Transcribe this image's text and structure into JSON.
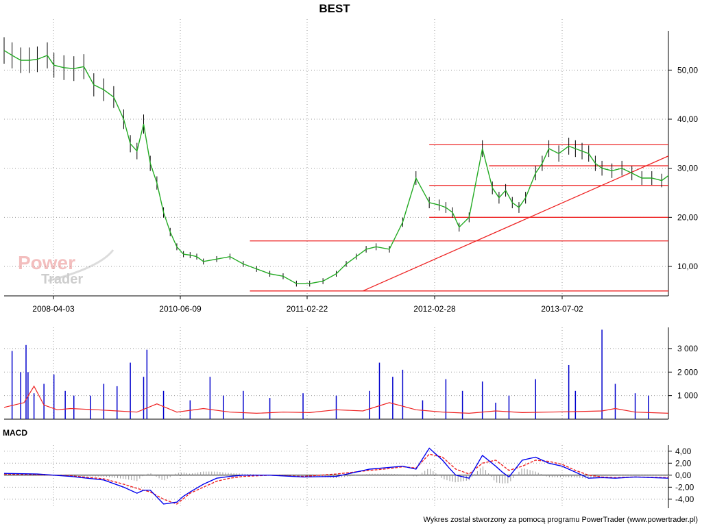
{
  "title": "BEST",
  "footer": "Wykres został stworzony za pomocą programu PowerTrader (www.powertrader.pl)",
  "watermark": {
    "line1": "Power",
    "line2": "Trader"
  },
  "macd_label": "MACD",
  "colors": {
    "price_line": "#22aa22",
    "candle": "#000000",
    "trend_line": "#ee2222",
    "volume_bar": "#0000cc",
    "volume_avg": "#ee2222",
    "macd": "#0000ee",
    "signal": "#ee2222",
    "histogram": "#999999",
    "grid": "#999999"
  },
  "chart_data": [
    {
      "type": "line",
      "title": "BEST",
      "x_tick_labels": [
        "2008-04-03",
        "2010-06-09",
        "2011-02-22",
        "2012-02-28",
        "2013-07-02"
      ],
      "y_tick_labels": [
        "10,00",
        "20,00",
        "30,00",
        "40,00",
        "50,00"
      ],
      "ylim": [
        4,
        58
      ],
      "grid": true,
      "series": [
        {
          "t": [
            0,
            0.012,
            0.025,
            0.038,
            0.05,
            0.065,
            0.075,
            0.09,
            0.105,
            0.12,
            0.135,
            0.15,
            0.165,
            0.18,
            0.19,
            0.2,
            0.21,
            0.22,
            0.23,
            0.24,
            0.25,
            0.26,
            0.27,
            0.28,
            0.29,
            0.3,
            0.32,
            0.34,
            0.36,
            0.38,
            0.4,
            0.42,
            0.44,
            0.46,
            0.48,
            0.5,
            0.515,
            0.53,
            0.545,
            0.56,
            0.58,
            0.6,
            0.62,
            0.64,
            0.655,
            0.665,
            0.675,
            0.685,
            0.7,
            0.72,
            0.735,
            0.745,
            0.755,
            0.765,
            0.775,
            0.785,
            0.8,
            0.81,
            0.82,
            0.835,
            0.85,
            0.86,
            0.87,
            0.88,
            0.89,
            0.9,
            0.915,
            0.93,
            0.945,
            0.96,
            0.975,
            0.99,
            1.0
          ],
          "values": [
            54.0,
            53.0,
            52.0,
            52.0,
            52.2,
            53.0,
            51.0,
            50.5,
            50.3,
            50.7,
            47.0,
            46.0,
            44.5,
            40.0,
            35.0,
            33.5,
            39.0,
            31.0,
            27.0,
            21.0,
            17.0,
            14.0,
            12.5,
            12.3,
            12.0,
            11.0,
            11.5,
            12.0,
            10.5,
            9.5,
            8.5,
            8.0,
            6.5,
            6.5,
            7.0,
            8.5,
            10.5,
            12.0,
            13.5,
            14.0,
            13.5,
            19.0,
            28.0,
            23.0,
            22.5,
            22.0,
            21.0,
            18.0,
            20.0,
            34.0,
            26.0,
            24.0,
            25.5,
            23.0,
            22.0,
            24.0,
            29.0,
            31.0,
            34.0,
            33.0,
            34.5,
            34.0,
            33.5,
            33.0,
            31.0,
            30.0,
            29.5,
            30.0,
            29.0,
            28.0,
            28.0,
            27.5,
            28.5
          ]
        }
      ],
      "trend_lines": [
        {
          "from": [
            0.37,
            15.2
          ],
          "to": [
            1.0,
            15.2
          ]
        },
        {
          "from": [
            0.37,
            5.0
          ],
          "to": [
            1.0,
            5.0
          ]
        },
        {
          "from": [
            0.54,
            5.0
          ],
          "to": [
            1.0,
            32.5
          ]
        },
        {
          "from": [
            0.64,
            34.8
          ],
          "to": [
            1.0,
            34.8
          ]
        },
        {
          "from": [
            0.73,
            30.5
          ],
          "to": [
            1.0,
            30.5
          ]
        },
        {
          "from": [
            0.64,
            26.5
          ],
          "to": [
            1.0,
            26.5
          ]
        },
        {
          "from": [
            0.64,
            20.0
          ],
          "to": [
            1.0,
            20.0
          ]
        }
      ]
    },
    {
      "type": "bar",
      "title": "",
      "y_tick_labels": [
        "1 000",
        "2 000",
        "3 000"
      ],
      "ylim": [
        0,
        3900
      ],
      "grid": true,
      "series": [
        {
          "t": [
            0.012,
            0.025,
            0.033,
            0.036,
            0.045,
            0.06,
            0.075,
            0.092,
            0.105,
            0.13,
            0.15,
            0.17,
            0.19,
            0.21,
            0.215,
            0.24,
            0.28,
            0.31,
            0.33,
            0.36,
            0.4,
            0.45,
            0.5,
            0.55,
            0.565,
            0.585,
            0.6,
            0.63,
            0.665,
            0.69,
            0.72,
            0.74,
            0.76,
            0.8,
            0.85,
            0.86,
            0.9,
            0.92,
            0.95,
            0.97
          ],
          "values": [
            2900,
            2000,
            3150,
            2000,
            1100,
            1500,
            1900,
            1200,
            1000,
            1000,
            1500,
            1400,
            2400,
            1800,
            2950,
            1200,
            800,
            1800,
            1000,
            1200,
            900,
            1100,
            1000,
            1200,
            2400,
            1800,
            2100,
            800,
            1700,
            1200,
            1600,
            700,
            1000,
            1700,
            2300,
            1200,
            3800,
            1500,
            1100,
            1000
          ]
        },
        {
          "name": "",
          "t": [
            0,
            0.03,
            0.045,
            0.06,
            0.08,
            0.1,
            0.14,
            0.17,
            0.2,
            0.23,
            0.26,
            0.3,
            0.34,
            0.38,
            0.42,
            0.46,
            0.5,
            0.54,
            0.58,
            0.62,
            0.66,
            0.7,
            0.74,
            0.78,
            0.82,
            0.86,
            0.9,
            0.92,
            0.95,
            1.0
          ],
          "values": [
            500,
            700,
            1400,
            600,
            400,
            450,
            400,
            350,
            300,
            650,
            300,
            450,
            300,
            250,
            300,
            280,
            400,
            350,
            700,
            400,
            300,
            250,
            350,
            280,
            300,
            320,
            350,
            450,
            300,
            250
          ]
        }
      ]
    },
    {
      "type": "line",
      "title": "MACD",
      "y_tick_labels": [
        "-4,00",
        "-2,00",
        "0,00",
        "2,00",
        "4,00"
      ],
      "ylim": [
        -5.5,
        5.0
      ],
      "grid": true,
      "series": [
        {
          "name": "",
          "t": [
            0,
            0.05,
            0.1,
            0.15,
            0.18,
            0.2,
            0.21,
            0.22,
            0.24,
            0.26,
            0.27,
            0.28,
            0.3,
            0.32,
            0.34,
            0.36,
            0.4,
            0.45,
            0.5,
            0.55,
            0.58,
            0.6,
            0.62,
            0.64,
            0.66,
            0.67,
            0.68,
            0.7,
            0.72,
            0.74,
            0.75,
            0.76,
            0.78,
            0.8,
            0.82,
            0.84,
            0.86,
            0.88,
            0.9,
            0.92,
            0.95,
            1.0
          ],
          "values": [
            0.3,
            0.2,
            -0.2,
            -0.8,
            -2.0,
            -3.0,
            -2.5,
            -2.5,
            -4.8,
            -4.5,
            -3.5,
            -2.8,
            -1.5,
            -0.5,
            -0.2,
            0,
            0,
            -0.3,
            -0.2,
            1.0,
            1.3,
            1.5,
            1.0,
            4.5,
            2.5,
            1.2,
            0,
            -0.5,
            3.3,
            1.5,
            0.5,
            -0.3,
            2.5,
            3.0,
            2.0,
            1.5,
            0.5,
            -0.5,
            -0.4,
            -0.5,
            -0.3,
            -0.5
          ]
        },
        {
          "name": "",
          "t": [
            0,
            0.05,
            0.1,
            0.15,
            0.18,
            0.2,
            0.22,
            0.24,
            0.26,
            0.28,
            0.3,
            0.32,
            0.34,
            0.36,
            0.4,
            0.45,
            0.5,
            0.55,
            0.58,
            0.6,
            0.62,
            0.64,
            0.66,
            0.68,
            0.7,
            0.72,
            0.74,
            0.76,
            0.78,
            0.8,
            0.82,
            0.84,
            0.86,
            0.88,
            0.9,
            0.92,
            0.95,
            1.0
          ],
          "values": [
            0.2,
            0.1,
            -0.1,
            -0.6,
            -1.5,
            -2.2,
            -2.8,
            -4.0,
            -4.8,
            -3.0,
            -2.0,
            -1.0,
            -0.5,
            -0.2,
            0.0,
            -0.2,
            0.2,
            0.8,
            1.1,
            1.4,
            1.2,
            3.5,
            3.0,
            1.0,
            0.2,
            2.0,
            2.5,
            0.8,
            1.5,
            2.5,
            2.3,
            1.8,
            0.8,
            0.0,
            -0.3,
            -0.4,
            -0.3,
            -0.4
          ]
        }
      ]
    }
  ]
}
